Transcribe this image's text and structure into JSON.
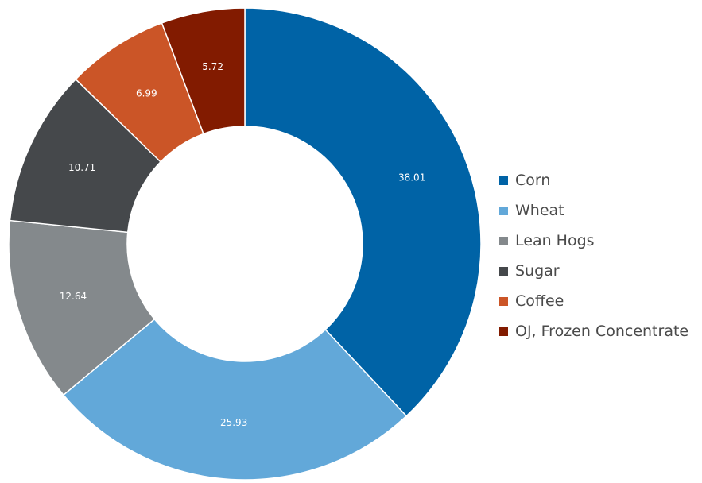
{
  "chart_data": {
    "type": "pie",
    "donut": true,
    "categories": [
      "Corn",
      "Wheat",
      "Lean Hogs",
      "Sugar",
      "Coffee",
      "OJ, Frozen Concentrate"
    ],
    "values": [
      38.01,
      25.93,
      12.64,
      10.71,
      6.99,
      5.72
    ],
    "value_labels": [
      "38.01",
      "25.93",
      "12.64",
      "10.71",
      "6.99",
      "5.72"
    ],
    "colors": [
      "#0063a6",
      "#62a8d9",
      "#84898c",
      "#45484b",
      "#cb5527",
      "#821b00"
    ],
    "legend_position": "right",
    "title": "",
    "start": "top, clockwise"
  }
}
